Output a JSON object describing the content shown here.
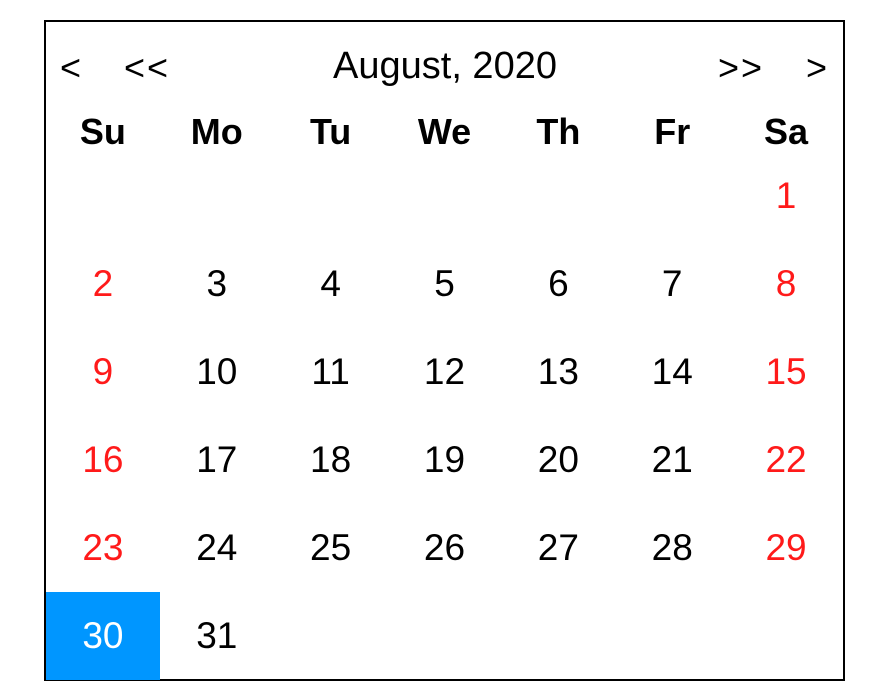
{
  "calendar": {
    "title": "August, 2020",
    "nav": {
      "prev_month": "<",
      "prev_year": "<<",
      "next_year": ">>",
      "next_month": ">"
    },
    "weekdays": [
      "Su",
      "Mo",
      "Tu",
      "We",
      "Th",
      "Fr",
      "Sa"
    ],
    "weeks": [
      [
        "",
        "",
        "",
        "",
        "",
        "",
        "1"
      ],
      [
        "2",
        "3",
        "4",
        "5",
        "6",
        "7",
        "8"
      ],
      [
        "9",
        "10",
        "11",
        "12",
        "13",
        "14",
        "15"
      ],
      [
        "16",
        "17",
        "18",
        "19",
        "20",
        "21",
        "22"
      ],
      [
        "23",
        "24",
        "25",
        "26",
        "27",
        "28",
        "29"
      ],
      [
        "30",
        "31",
        "",
        "",
        "",
        "",
        ""
      ]
    ],
    "selected_day": "30",
    "colors": {
      "weekend": "#ff1a1a",
      "selected_bg": "#0096ff",
      "selected_text": "#ffffff"
    }
  }
}
